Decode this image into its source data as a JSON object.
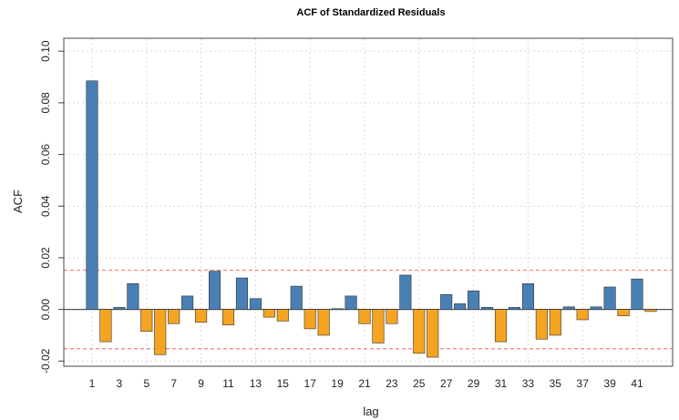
{
  "chart_data": {
    "type": "bar",
    "title": "ACF of Standardized Residuals",
    "xlabel": "lag",
    "ylabel": "ACF",
    "ylim": [
      -0.022,
      0.105
    ],
    "yticks": [
      -0.02,
      0.0,
      0.02,
      0.04,
      0.06,
      0.08,
      0.1
    ],
    "ytick_labels": [
      "-0.02",
      "0.00",
      "0.02",
      "0.04",
      "0.06",
      "0.08",
      "0.10"
    ],
    "xtick_labels": [
      "1",
      "3",
      "5",
      "7",
      "9",
      "11",
      "13",
      "15",
      "17",
      "19",
      "21",
      "23",
      "25",
      "27",
      "29",
      "31",
      "33",
      "35",
      "37",
      "39",
      "41"
    ],
    "lags": [
      1,
      2,
      3,
      4,
      5,
      6,
      7,
      8,
      9,
      10,
      11,
      12,
      13,
      14,
      15,
      16,
      17,
      18,
      19,
      20,
      21,
      22,
      23,
      24,
      25,
      26,
      27,
      28,
      29,
      30,
      31,
      32,
      33,
      34,
      35,
      36,
      37,
      38,
      39,
      40,
      41,
      42
    ],
    "values": [
      0.0885,
      -0.0125,
      0.0008,
      0.01,
      -0.0085,
      -0.0175,
      -0.0055,
      0.0052,
      -0.005,
      0.0148,
      -0.006,
      0.0122,
      0.0042,
      -0.003,
      -0.0045,
      0.009,
      -0.0075,
      -0.01,
      0.0003,
      0.0052,
      -0.0055,
      -0.013,
      -0.0055,
      0.0133,
      -0.017,
      -0.0185,
      0.0058,
      0.0022,
      0.0072,
      0.0008,
      -0.0125,
      0.0008,
      0.01,
      -0.0115,
      -0.01,
      0.001,
      -0.004,
      0.001,
      0.0087,
      -0.0025,
      0.0118,
      -0.0008
    ],
    "confidence_bound": 0.0152,
    "grid": true,
    "colors": {
      "positive": "#4a7fb5",
      "negative": "#f5a422",
      "bar_border": "#333333",
      "ci_line": "#f08080",
      "zero_line": "#555555",
      "grid": "#d9d9d9"
    }
  }
}
